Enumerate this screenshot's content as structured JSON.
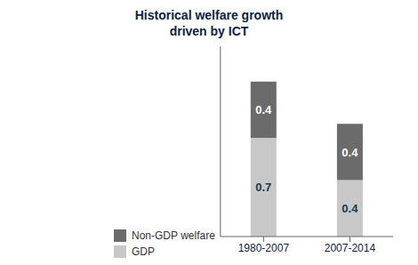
{
  "chart_data": {
    "type": "bar",
    "title": "Historical welfare growth\ndriven by ICT",
    "categories": [
      "1980-2007",
      "2007-2014"
    ],
    "series": [
      {
        "name": "GDP",
        "color": "#c8c8c8",
        "values": [
          0.7,
          0.4
        ]
      },
      {
        "name": "Non-GDP welfare",
        "color": "#6b6b6b",
        "values": [
          0.4,
          0.4
        ]
      }
    ],
    "stacked": true,
    "data_labels": true,
    "ylim": [
      0,
      1.35
    ],
    "tick_labels": "x",
    "legend": "lower left"
  }
}
